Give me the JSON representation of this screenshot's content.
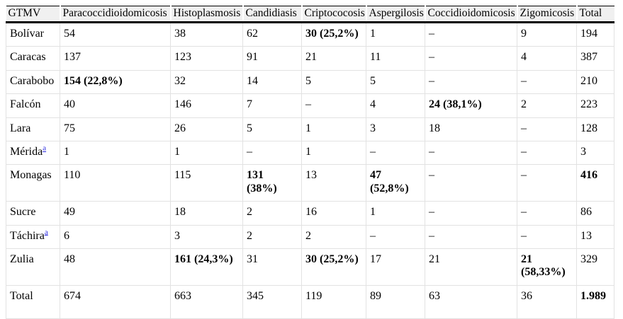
{
  "table": {
    "columns": [
      "GTMV",
      "Paracoccidioidomicosis",
      "Histoplasmosis",
      "Candidiasis",
      "Criptococosis",
      "Aspergilosis",
      "Coccidioidomicosis",
      "Zigomicosis",
      "Total"
    ],
    "rows": [
      {
        "label": "Bolívar",
        "sup": "",
        "cells": [
          {
            "v": "54"
          },
          {
            "v": "38"
          },
          {
            "v": "62"
          },
          {
            "v": "30 (25,2%)",
            "b": true
          },
          {
            "v": "1"
          },
          {
            "v": "–"
          },
          {
            "v": "9"
          },
          {
            "v": "194"
          }
        ]
      },
      {
        "label": "Caracas",
        "sup": "",
        "cells": [
          {
            "v": "137"
          },
          {
            "v": "123"
          },
          {
            "v": "91"
          },
          {
            "v": "21"
          },
          {
            "v": "11"
          },
          {
            "v": "–"
          },
          {
            "v": "4"
          },
          {
            "v": "387"
          }
        ]
      },
      {
        "label": "Carabobo",
        "sup": "",
        "cells": [
          {
            "v": "154 (22,8%)",
            "b": true
          },
          {
            "v": "32"
          },
          {
            "v": "14"
          },
          {
            "v": "5"
          },
          {
            "v": "5"
          },
          {
            "v": "–"
          },
          {
            "v": "–"
          },
          {
            "v": "210"
          }
        ]
      },
      {
        "label": "Falcón",
        "sup": "",
        "cells": [
          {
            "v": "40"
          },
          {
            "v": "146"
          },
          {
            "v": "7"
          },
          {
            "v": "–"
          },
          {
            "v": "4"
          },
          {
            "v": "24 (38,1%)",
            "b": true
          },
          {
            "v": "2"
          },
          {
            "v": "223"
          }
        ]
      },
      {
        "label": "Lara",
        "sup": "",
        "cells": [
          {
            "v": "75"
          },
          {
            "v": "26"
          },
          {
            "v": "5"
          },
          {
            "v": "1"
          },
          {
            "v": "3"
          },
          {
            "v": "18"
          },
          {
            "v": "–"
          },
          {
            "v": "128"
          }
        ]
      },
      {
        "label": "Mérida",
        "sup": "a",
        "cells": [
          {
            "v": "1"
          },
          {
            "v": "1"
          },
          {
            "v": "–"
          },
          {
            "v": "1"
          },
          {
            "v": "–"
          },
          {
            "v": "–"
          },
          {
            "v": "–"
          },
          {
            "v": "3"
          }
        ]
      },
      {
        "label": "Monagas",
        "sup": "",
        "cells": [
          {
            "v": "110"
          },
          {
            "v": "115"
          },
          {
            "v": "131\n(38%)",
            "b": true
          },
          {
            "v": "13"
          },
          {
            "v": "47\n(52,8%)",
            "b": true
          },
          {
            "v": "–"
          },
          {
            "v": "–"
          },
          {
            "v": "416",
            "b": true
          }
        ]
      },
      {
        "label": "Sucre",
        "sup": "",
        "cells": [
          {
            "v": "49"
          },
          {
            "v": "18"
          },
          {
            "v": "2"
          },
          {
            "v": "16"
          },
          {
            "v": "1"
          },
          {
            "v": "–"
          },
          {
            "v": "–"
          },
          {
            "v": "86"
          }
        ]
      },
      {
        "label": "Táchira",
        "sup": "a",
        "cells": [
          {
            "v": "6"
          },
          {
            "v": "3"
          },
          {
            "v": "2"
          },
          {
            "v": "2"
          },
          {
            "v": "–"
          },
          {
            "v": "–"
          },
          {
            "v": "–"
          },
          {
            "v": "13"
          }
        ]
      },
      {
        "label": "Zulia",
        "sup": "",
        "cells": [
          {
            "v": "48"
          },
          {
            "v": "161 (24,3%)",
            "b": true
          },
          {
            "v": "31"
          },
          {
            "v": "30 (25,2%)",
            "b": true
          },
          {
            "v": "17"
          },
          {
            "v": "21"
          },
          {
            "v": "21\n(58,33%)",
            "b": true
          },
          {
            "v": "329"
          }
        ]
      },
      {
        "label": "Total",
        "sup": "",
        "cells": [
          {
            "v": "674"
          },
          {
            "v": "663"
          },
          {
            "v": "345"
          },
          {
            "v": "119"
          },
          {
            "v": "89"
          },
          {
            "v": "63"
          },
          {
            "v": "36"
          },
          {
            "v": "1.989",
            "b": true
          }
        ]
      }
    ],
    "colors": {
      "header_bg": "#f0f0f0",
      "header_border": "#000000",
      "grid_line": "#e2e2e2",
      "text": "#000000",
      "link": "#2a2ae0"
    }
  }
}
